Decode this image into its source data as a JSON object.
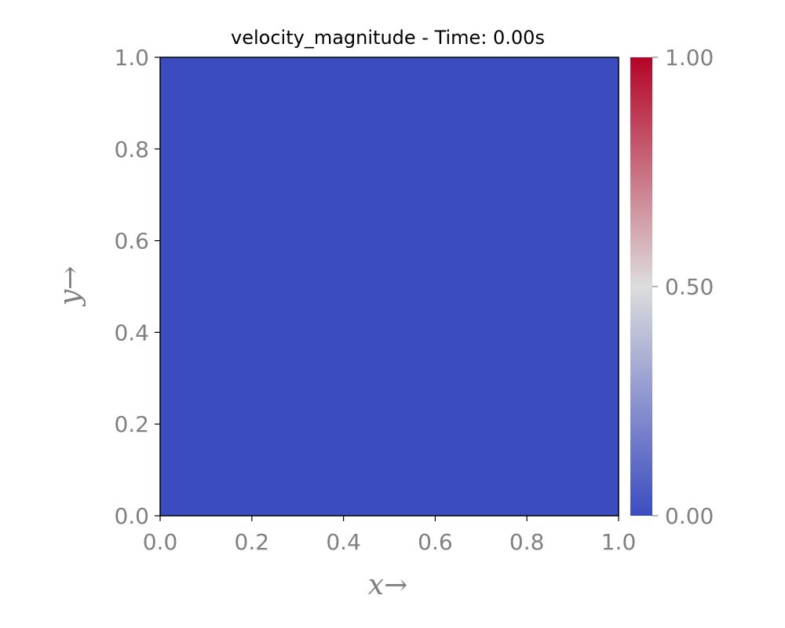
{
  "chart_data": {
    "type": "heatmap",
    "title": "velocity_magnitude - Time: 0.00s",
    "xlabel": "x→",
    "ylabel": "y→",
    "xlim": [
      0.0,
      1.0
    ],
    "ylim": [
      0.0,
      1.0
    ],
    "x_ticks": [
      "0.0",
      "0.2",
      "0.4",
      "0.6",
      "0.8",
      "1.0"
    ],
    "y_ticks": [
      "0.0",
      "0.2",
      "0.4",
      "0.6",
      "0.8",
      "1.0"
    ],
    "field": {
      "x_range": [
        0.0,
        1.0
      ],
      "y_range": [
        0.0,
        1.0
      ],
      "value": 0.0,
      "color": "#3b4cc0"
    },
    "colorbar": {
      "colormap": "coolwarm",
      "range": [
        0.0,
        1.0
      ],
      "ticks": [
        "0.00",
        "0.50",
        "1.00"
      ],
      "levels": 50,
      "colors": [
        "#3b4cc0",
        "#dddddd",
        "#b40426"
      ]
    },
    "grid": false
  }
}
